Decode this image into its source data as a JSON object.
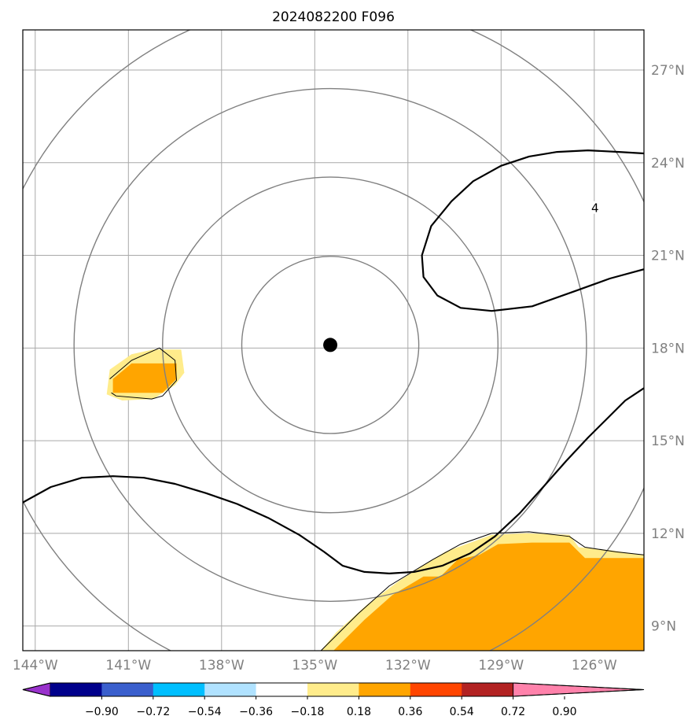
{
  "chart_data": {
    "type": "heatmap",
    "title": "2024082200 F096",
    "projection": "geographic map, lon/lat graticule every 3 degrees",
    "lon_range": [
      -144.4,
      -124.4
    ],
    "lat_range": [
      8.2,
      28.3
    ],
    "lon_ticks": [
      {
        "value": -144,
        "label": "144°W"
      },
      {
        "value": -141,
        "label": "141°W"
      },
      {
        "value": -138,
        "label": "138°W"
      },
      {
        "value": -135,
        "label": "135°W"
      },
      {
        "value": -132,
        "label": "132°W"
      },
      {
        "value": -129,
        "label": "129°W"
      },
      {
        "value": -126,
        "label": "126°W"
      }
    ],
    "lat_ticks": [
      {
        "value": 9,
        "label": "9°N"
      },
      {
        "value": 12,
        "label": "12°N"
      },
      {
        "value": 15,
        "label": "15°N"
      },
      {
        "value": 18,
        "label": "18°N"
      },
      {
        "value": 21,
        "label": "21°N"
      },
      {
        "value": 24,
        "label": "24°N"
      },
      {
        "value": 27,
        "label": "27°N"
      }
    ],
    "grid": true,
    "center_marker": {
      "lon": -134.5,
      "lat": 18.1
    },
    "range_rings_deg": [
      2.85,
      5.4,
      8.25,
      11.1
    ],
    "colorbar": {
      "orientation": "horizontal",
      "extend": "both",
      "levels": [
        -0.9,
        -0.72,
        -0.54,
        -0.36,
        -0.18,
        0.18,
        0.36,
        0.54,
        0.72,
        0.9
      ],
      "tick_labels": [
        "−0.90",
        "−0.72",
        "−0.54",
        "−0.36",
        "−0.18",
        "0.18",
        "0.36",
        "0.54",
        "0.72",
        "0.90"
      ],
      "colors": [
        "#9932cc",
        "#00008b",
        "#3a5fcd",
        "#00bfff",
        "#b0e2ff",
        "#ffffff",
        "#ffec8b",
        "#ffa500",
        "#ff4500",
        "#b22222",
        "#ff82ab"
      ]
    },
    "filled_areas": [
      {
        "level": "0.18–0.36",
        "color": "#ffec8b",
        "points": [
          [
            -141.6,
            17.3
          ],
          [
            -140.9,
            17.8
          ],
          [
            -140.2,
            17.95
          ],
          [
            -139.3,
            17.95
          ],
          [
            -139.2,
            17.2
          ],
          [
            -139.5,
            16.8
          ],
          [
            -140.2,
            16.35
          ],
          [
            -141.2,
            16.3
          ],
          [
            -141.7,
            16.5
          ]
        ]
      },
      {
        "level": "0.36–0.54",
        "color": "#ffa500",
        "points": [
          [
            -141.5,
            17.0
          ],
          [
            -140.9,
            17.5
          ],
          [
            -139.45,
            17.5
          ],
          [
            -139.45,
            17.0
          ],
          [
            -139.9,
            16.55
          ],
          [
            -141.5,
            16.55
          ]
        ]
      },
      {
        "level": "0.18–0.36",
        "color": "#ffec8b",
        "points": [
          [
            -134.8,
            8.2
          ],
          [
            -134.3,
            8.8
          ],
          [
            -133.3,
            9.7
          ],
          [
            -132.3,
            10.45
          ],
          [
            -130.8,
            11.4
          ],
          [
            -129.3,
            11.95
          ],
          [
            -128.2,
            12.0
          ],
          [
            -126.8,
            11.95
          ],
          [
            -126.5,
            11.55
          ],
          [
            -125.5,
            11.45
          ],
          [
            -124.4,
            11.3
          ],
          [
            -124.4,
            8.2
          ]
        ]
      },
      {
        "level": "0.36–0.54",
        "color": "#ffa500",
        "points": [
          [
            -134.4,
            8.2
          ],
          [
            -133.4,
            9.2
          ],
          [
            -132.5,
            10.0
          ],
          [
            -131.5,
            10.6
          ],
          [
            -130.95,
            10.6
          ],
          [
            -130.4,
            11.15
          ],
          [
            -129.7,
            11.3
          ],
          [
            -129.1,
            11.65
          ],
          [
            -128.0,
            11.7
          ],
          [
            -126.8,
            11.7
          ],
          [
            -126.3,
            11.2
          ],
          [
            -124.4,
            11.2
          ],
          [
            -124.4,
            8.2
          ]
        ]
      }
    ],
    "thin_contours": [
      {
        "points": [
          [
            -141.6,
            17.0
          ],
          [
            -140.9,
            17.6
          ],
          [
            -140.0,
            18.0
          ],
          [
            -139.5,
            17.6
          ],
          [
            -139.45,
            16.95
          ],
          [
            -139.9,
            16.45
          ],
          [
            -140.25,
            16.35
          ],
          [
            -141.4,
            16.45
          ],
          [
            -141.55,
            16.55
          ]
        ]
      },
      {
        "points": [
          [
            -134.8,
            8.2
          ],
          [
            -133.6,
            9.4
          ],
          [
            -132.6,
            10.3
          ],
          [
            -131.2,
            11.15
          ],
          [
            -130.3,
            11.65
          ],
          [
            -129.3,
            12.0
          ],
          [
            -128.1,
            12.05
          ],
          [
            -126.8,
            11.9
          ],
          [
            -126.3,
            11.55
          ],
          [
            -125.3,
            11.4
          ],
          [
            -124.4,
            11.3
          ]
        ]
      }
    ],
    "thick_contours": [
      {
        "label": "4",
        "points": [
          [
            -124.4,
            24.3
          ],
          [
            -125.2,
            24.35
          ],
          [
            -126.2,
            24.4
          ],
          [
            -127.2,
            24.35
          ],
          [
            -128.1,
            24.2
          ],
          [
            -129.0,
            23.9
          ],
          [
            -129.9,
            23.4
          ],
          [
            -130.6,
            22.75
          ],
          [
            -131.25,
            21.95
          ],
          [
            -131.55,
            21.0
          ],
          [
            -131.5,
            20.3
          ],
          [
            -131.05,
            19.7
          ],
          [
            -130.3,
            19.3
          ],
          [
            -129.3,
            19.2
          ],
          [
            -128.0,
            19.35
          ],
          [
            -126.6,
            19.85
          ],
          [
            -125.5,
            20.25
          ],
          [
            -124.4,
            20.55
          ]
        ]
      },
      {
        "points": [
          [
            -144.4,
            13.0
          ],
          [
            -143.5,
            13.5
          ],
          [
            -142.5,
            13.8
          ],
          [
            -141.5,
            13.85
          ],
          [
            -140.5,
            13.8
          ],
          [
            -139.5,
            13.6
          ],
          [
            -138.5,
            13.3
          ],
          [
            -137.5,
            12.95
          ],
          [
            -136.5,
            12.5
          ],
          [
            -135.5,
            11.95
          ],
          [
            -134.7,
            11.4
          ],
          [
            -134.1,
            10.95
          ],
          [
            -133.4,
            10.75
          ],
          [
            -132.6,
            10.7
          ],
          [
            -131.8,
            10.75
          ],
          [
            -130.9,
            10.95
          ],
          [
            -130.0,
            11.35
          ],
          [
            -129.2,
            11.9
          ],
          [
            -128.4,
            12.65
          ],
          [
            -127.6,
            13.55
          ],
          [
            -126.9,
            14.35
          ],
          [
            -126.2,
            15.1
          ],
          [
            -125.6,
            15.7
          ],
          [
            -125.0,
            16.3
          ],
          [
            -124.4,
            16.7
          ]
        ]
      }
    ],
    "contour_labels": [
      {
        "text": "4",
        "lon": -126.0,
        "lat": 22.5
      }
    ]
  }
}
